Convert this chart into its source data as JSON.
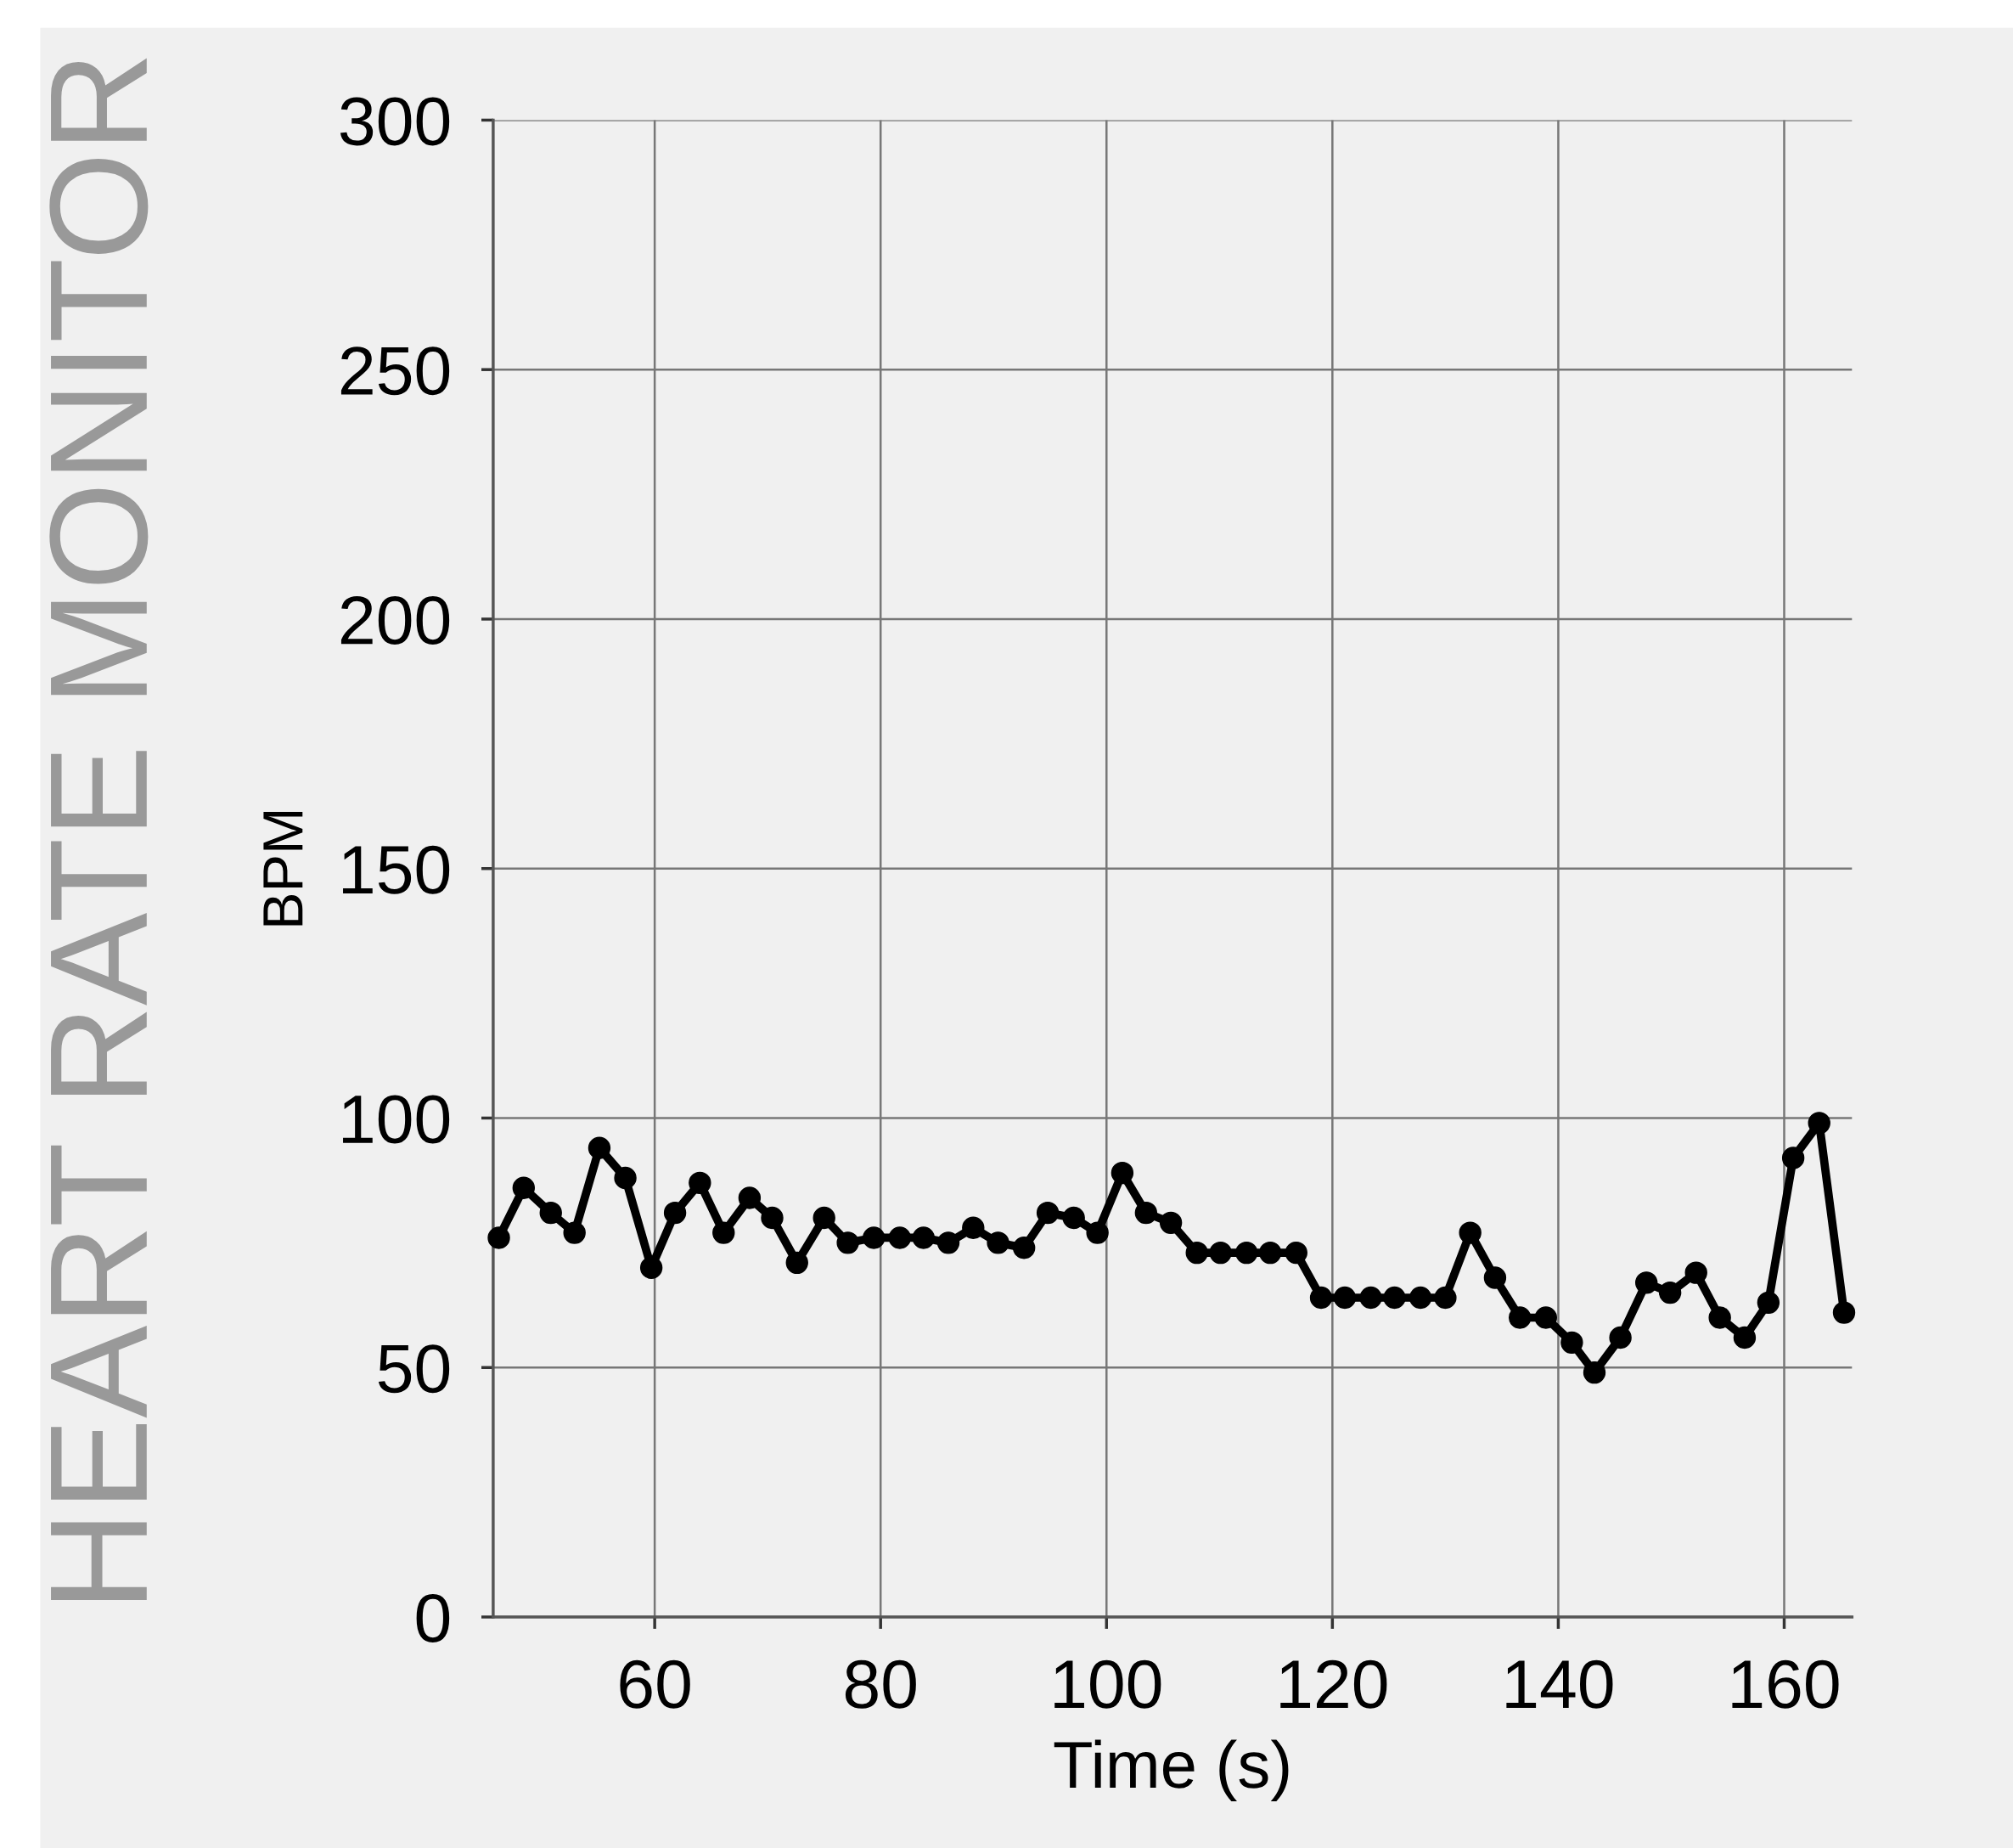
{
  "chart_data": {
    "type": "line",
    "title": "HEART RATE MONITOR",
    "xlabel": "Time (s)",
    "ylabel": "BPM",
    "x": [
      46.2,
      48.4,
      50.8,
      52.9,
      55.1,
      57.4,
      59.7,
      61.8,
      64,
      66.1,
      68.4,
      70.4,
      72.6,
      75,
      77.1,
      79.4,
      81.7,
      83.8,
      86,
      88.2,
      90.4,
      92.7,
      94.8,
      97.1,
      99.2,
      101.4,
      103.5,
      105.7,
      108,
      110.1,
      112.4,
      114.5,
      116.8,
      119,
      121.1,
      123.4,
      125.5,
      127.8,
      130,
      132.2,
      134.4,
      136.6,
      138.9,
      141.2,
      143.2,
      145.5,
      147.8,
      149.9,
      152.2,
      154.3,
      156.5,
      158.6,
      160.8,
      163.1,
      165.3
    ],
    "series": [
      {
        "color": "#000000",
        "values": [
          76,
          86,
          81,
          77,
          94,
          88,
          70,
          81,
          87,
          77,
          84,
          80,
          71,
          80,
          75,
          76,
          76,
          76,
          75,
          78,
          75,
          74,
          81,
          80,
          77,
          89,
          81,
          79,
          73,
          73,
          73,
          73,
          73,
          64,
          64,
          64,
          64,
          64,
          64,
          77,
          68,
          60,
          60,
          55,
          49,
          56,
          67,
          65,
          69,
          60,
          56,
          63,
          92,
          99,
          61
        ]
      }
    ],
    "xlim": [
      45.7,
      166
    ],
    "xticks": [
      60,
      80,
      100,
      120,
      140,
      160
    ],
    "ylim": [
      0,
      300
    ],
    "yticks": [
      0,
      50,
      100,
      150,
      200,
      250,
      300
    ],
    "grid": true,
    "marker": "circle",
    "line_style": "solid"
  }
}
